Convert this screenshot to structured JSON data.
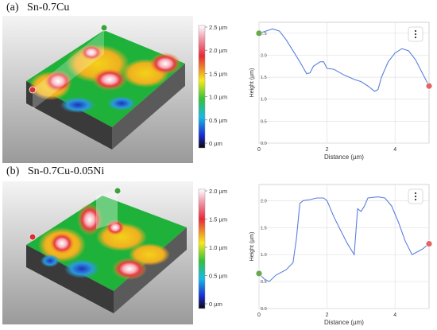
{
  "panels": [
    {
      "label": "(a)",
      "sample": "Sn-0.7Cu",
      "colorbar": {
        "ticks": [
          "2.5 µm",
          "2.0 µm",
          "1.5 µm",
          "1.0 µm",
          "0.5 µm",
          "0 µm"
        ]
      },
      "profile": {
        "xlabel": "Distance (µm)",
        "ylabel": "Height (µm)",
        "xticks": [
          "0",
          "2",
          "4"
        ],
        "yticks": [
          "2.5",
          "2.0",
          "1.5",
          "1.0",
          "0.5",
          "0.0"
        ],
        "menu_icon": "more-vertical-icon"
      }
    },
    {
      "label": "(b)",
      "sample": "Sn-0.7Cu-0.05Ni",
      "colorbar": {
        "ticks": [
          "2.0 µm",
          "1.5 µm",
          "1.0 µm",
          "0.5 µm",
          "0 µm"
        ]
      },
      "profile": {
        "xlabel": "Distance (µm)",
        "ylabel": "Height (µm)",
        "xticks": [
          "0",
          "2",
          "4"
        ],
        "yticks": [
          "2.0",
          "1.5",
          "1.0",
          "0.5",
          "0.0"
        ],
        "menu_icon": "more-vertical-icon"
      }
    }
  ],
  "chart_data": [
    {
      "type": "line",
      "title": "",
      "xlabel": "Distance (µm)",
      "ylabel": "Height (µm)",
      "xlim": [
        0,
        5
      ],
      "ylim": [
        0,
        2.75
      ],
      "grid": true,
      "marker_colors": {
        "start": "#6aa84f",
        "end": "#e06666"
      },
      "line_color": "#5b7fe0",
      "x": [
        0,
        0.2,
        0.4,
        0.6,
        0.8,
        1.0,
        1.2,
        1.4,
        1.5,
        1.6,
        1.8,
        1.9,
        2.0,
        2.2,
        2.5,
        2.8,
        3.0,
        3.2,
        3.4,
        3.5,
        3.6,
        3.8,
        4.0,
        4.2,
        4.4,
        4.6,
        4.8,
        5.0
      ],
      "y": [
        2.5,
        2.55,
        2.6,
        2.55,
        2.35,
        2.1,
        1.85,
        1.58,
        1.6,
        1.75,
        1.85,
        1.85,
        1.7,
        1.68,
        1.55,
        1.45,
        1.4,
        1.3,
        1.18,
        1.22,
        1.5,
        1.85,
        2.05,
        2.15,
        2.1,
        1.9,
        1.6,
        1.3
      ]
    },
    {
      "type": "line",
      "title": "",
      "xlabel": "Distance (µm)",
      "ylabel": "Height (µm)",
      "xlim": [
        0,
        5
      ],
      "ylim": [
        0,
        2.3
      ],
      "grid": true,
      "marker_colors": {
        "start": "#6aa84f",
        "end": "#e06666"
      },
      "line_color": "#5b7fe0",
      "x": [
        0,
        0.15,
        0.3,
        0.5,
        0.8,
        1.0,
        1.1,
        1.2,
        1.3,
        1.5,
        1.7,
        1.9,
        2.0,
        2.2,
        2.4,
        2.6,
        2.8,
        2.9,
        3.0,
        3.1,
        3.2,
        3.5,
        3.7,
        3.9,
        4.1,
        4.3,
        4.5,
        4.8,
        5.0
      ],
      "y": [
        0.65,
        0.55,
        0.5,
        0.62,
        0.72,
        0.85,
        1.3,
        1.95,
        2.0,
        2.02,
        2.05,
        2.05,
        2.0,
        1.7,
        1.45,
        1.2,
        1.0,
        1.85,
        1.8,
        1.9,
        2.05,
        2.07,
        2.05,
        1.9,
        1.6,
        1.25,
        1.0,
        1.1,
        1.2
      ]
    }
  ]
}
